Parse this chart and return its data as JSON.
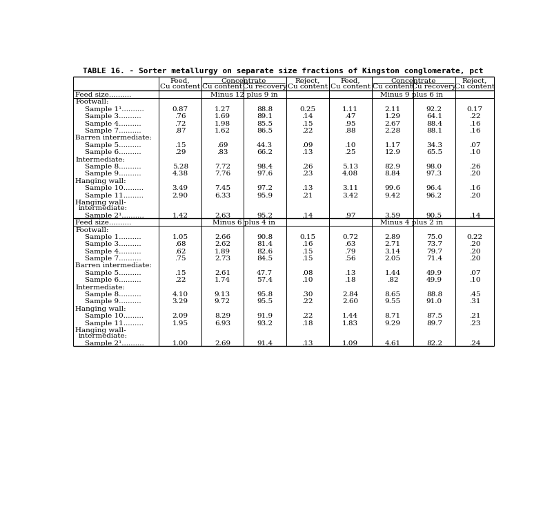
{
  "title": "TABLE 16. - Sorter metallurgy on separate size fractions of Kingston conglomerate, pct",
  "sections": [
    {
      "feed_size_label": "Feed size..........",
      "feed_size_left": "Minus 12 plus 9 in",
      "feed_size_right": "Minus 9 plus 6 in",
      "groups": [
        {
          "group_label": "Footwall:",
          "multiline": false,
          "rows": [
            [
              "Sample 1¹..........",
              "0.87",
              "1.27",
              "88.8",
              "0.25",
              "1.11",
              "2.11",
              "92.2",
              "0.17"
            ],
            [
              "Sample 3..........",
              ".76",
              "1.69",
              "89.1",
              ".14",
              ".47",
              "1.29",
              "64.1",
              ".22"
            ],
            [
              "Sample 4..........",
              ".72",
              "1.98",
              "85.5",
              ".15",
              ".95",
              "2.67",
              "88.4",
              ".16"
            ],
            [
              "Sample 7..........",
              ".87",
              "1.62",
              "86.5",
              ".22",
              ".88",
              "2.28",
              "88.1",
              ".16"
            ]
          ]
        },
        {
          "group_label": "Barren intermediate:",
          "multiline": false,
          "rows": [
            [
              "Sample 5..........",
              ".15",
              ".69",
              "44.3",
              ".09",
              ".10",
              "1.17",
              "34.3",
              ".07"
            ],
            [
              "Sample 6..........",
              ".29",
              ".83",
              "66.2",
              ".13",
              ".25",
              "12.9",
              "65.5",
              ".10"
            ]
          ]
        },
        {
          "group_label": "Intermediate:",
          "multiline": false,
          "rows": [
            [
              "Sample 8..........",
              "5.28",
              "7.72",
              "98.4",
              ".26",
              "5.13",
              "82.9",
              "98.0",
              ".26"
            ],
            [
              "Sample 9..........",
              "4.38",
              "7.76",
              "97.6",
              ".23",
              "4.08",
              "8.84",
              "97.3",
              ".20"
            ]
          ]
        },
        {
          "group_label": "Hanging wall:",
          "multiline": false,
          "rows": [
            [
              "Sample 10.........",
              "3.49",
              "7.45",
              "97.2",
              ".13",
              "3.11",
              "99.6",
              "96.4",
              ".16"
            ],
            [
              "Sample 11.........",
              "2.90",
              "6.33",
              "95.9",
              ".21",
              "3.42",
              "9.42",
              "96.2",
              ".20"
            ]
          ]
        },
        {
          "group_label": "Hanging wall-\nintermediate:",
          "multiline": true,
          "rows": [
            [
              "Sample 2¹..........",
              "1.42",
              "2.63",
              "95.2",
              ".14",
              ".97",
              "3.59",
              "90.5",
              ".14"
            ]
          ]
        }
      ]
    },
    {
      "feed_size_label": "Feed size..........",
      "feed_size_left": "Minus 6 plus 4 in",
      "feed_size_right": "Minus 4 plus 2 in",
      "groups": [
        {
          "group_label": "Footwall:",
          "multiline": false,
          "rows": [
            [
              "Sample 1..........",
              "1.05",
              "2.66",
              "90.8",
              "0.15",
              "0.72",
              "2.89",
              "75.0",
              "0.22"
            ],
            [
              "Sample 3..........",
              ".68",
              "2.62",
              "81.4",
              ".16",
              ".63",
              "2.71",
              "73.7",
              ".20"
            ],
            [
              "Sample 4..........",
              ".62",
              "1.89",
              "82.6",
              ".15",
              ".79",
              "3.14",
              "79.7",
              ".20"
            ],
            [
              "Sample 7..........",
              ".75",
              "2.73",
              "84.5",
              ".15",
              ".56",
              "2.05",
              "71.4",
              ".20"
            ]
          ]
        },
        {
          "group_label": "Barren intermediate:",
          "multiline": false,
          "rows": [
            [
              "Sample 5..........",
              ".15",
              "2.61",
              "47.7",
              ".08",
              ".13",
              "1.44",
              "49.9",
              ".07"
            ],
            [
              "Sample 6..........",
              ".22",
              "1.74",
              "57.4",
              ".10",
              ".18",
              ".82",
              "49.9",
              ".10"
            ]
          ]
        },
        {
          "group_label": "Intermediate:",
          "multiline": false,
          "rows": [
            [
              "Sample 8..........",
              "4.10",
              "9.13",
              "95.8",
              ".30",
              "2.84",
              "8.65",
              "88.8",
              ".45"
            ],
            [
              "Sample 9..........",
              "3.29",
              "9.72",
              "95.5",
              ".22",
              "2.60",
              "9.55",
              "91.0",
              ".31"
            ]
          ]
        },
        {
          "group_label": "Hanging wall:",
          "multiline": false,
          "rows": [
            [
              "Sample 10.........",
              "2.09",
              "8.29",
              "91.9",
              ".22",
              "1.44",
              "8.71",
              "87.5",
              ".21"
            ],
            [
              "Sample 11.........",
              "1.95",
              "6.93",
              "93.2",
              ".18",
              "1.83",
              "9.29",
              "89.7",
              ".23"
            ]
          ]
        },
        {
          "group_label": "Hanging wall-\nintermediate:",
          "multiline": true,
          "rows": [
            [
              "Sample 2¹..........",
              "1.00",
              "2.69",
              "91.4",
              ".13",
              "1.09",
              "4.61",
              "82.2",
              ".24"
            ]
          ]
        }
      ]
    }
  ]
}
